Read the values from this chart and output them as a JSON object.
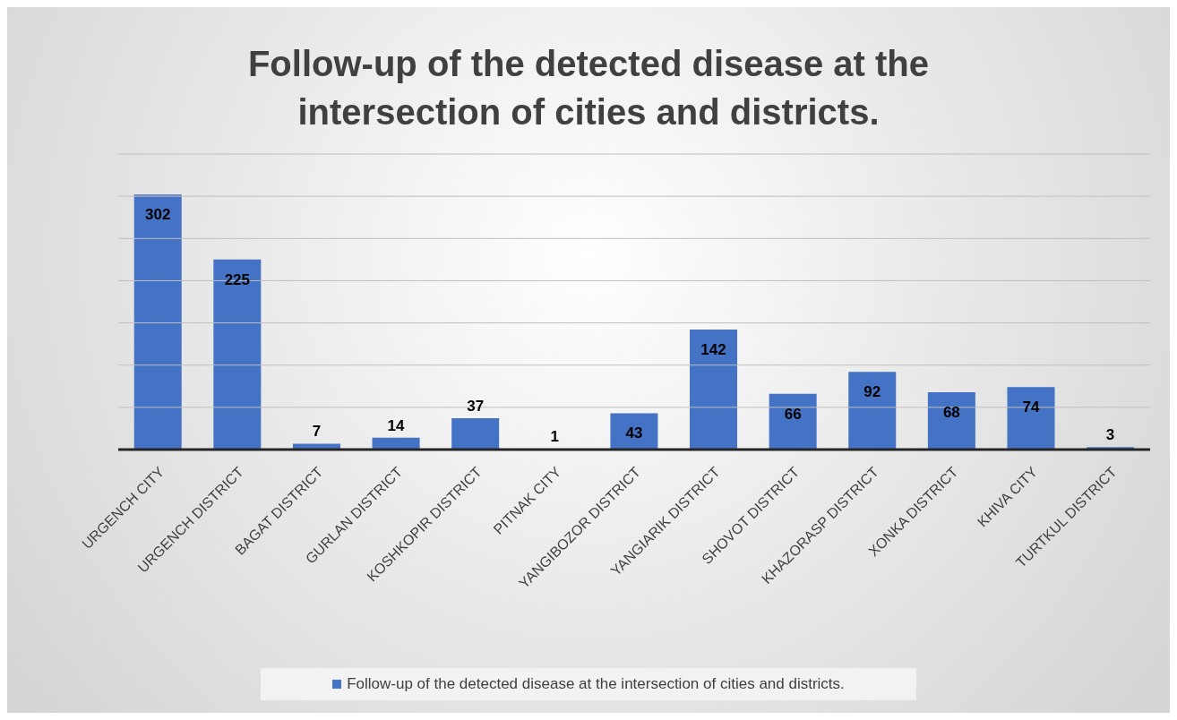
{
  "chart_data": {
    "type": "bar",
    "title": "Follow-up of the detected disease at the intersection of cities and districts.",
    "categories": [
      "URGENCH CITY",
      "URGENCH DISTRICT",
      "BAGAT DISTRICT",
      "GURLAN DISTRICT",
      "KOSHKOPIR DISTRICT",
      "PITNAK CITY",
      "YANGIBOZOR DISTRICT",
      "YANGIARIK DISTRICT",
      "SHOVOT DISTRICT",
      "KHAZORASP DISTRICT",
      "XONKA DISTRICT",
      "KHIVA CITY",
      "TURTKUL DISTRICT"
    ],
    "series": [
      {
        "name": "Follow-up of the detected disease at the intersection of cities and districts.",
        "color": "#4472c4",
        "values": [
          302,
          225,
          7,
          14,
          37,
          1,
          43,
          142,
          66,
          92,
          68,
          74,
          3
        ]
      }
    ],
    "ylim": [
      0,
      350
    ],
    "yticks": [
      {
        "value": 0,
        "label": null
      },
      {
        "value": 50,
        "label": null
      },
      {
        "value": 100,
        "label": null
      },
      {
        "value": 150,
        "label": null
      },
      {
        "value": 200,
        "label": null
      },
      {
        "value": 250,
        "label": null
      },
      {
        "value": 300,
        "label": null
      },
      {
        "value": 350,
        "label": null
      }
    ],
    "tick_labels": "x",
    "grid": "y",
    "data_labels": true,
    "legend": "bottom"
  }
}
